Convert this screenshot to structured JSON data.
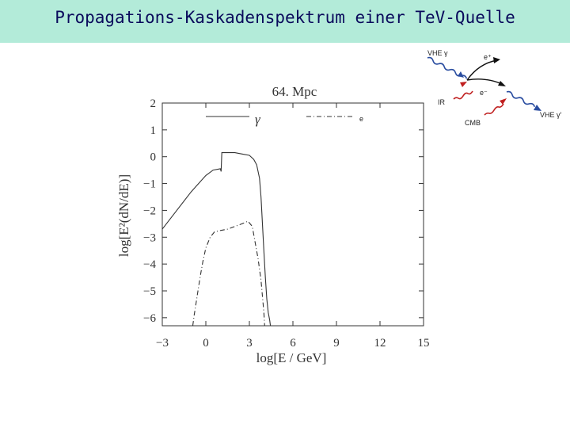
{
  "slide": {
    "title": "Propagations-Kaskadenspektrum einer TeV-Quelle",
    "title_color": "#0a0a5c",
    "title_bar_color": "#b3ebd9"
  },
  "chart_data": {
    "type": "line",
    "title": "64. Mpc",
    "xlabel": "log[E / GeV]",
    "ylabel": "log[E²(dN/dE)]",
    "xlim": [
      -3,
      15
    ],
    "ylim": [
      -6.3,
      2
    ],
    "xticks": [
      -3,
      0,
      3,
      6,
      9,
      12,
      15
    ],
    "yticks": [
      2,
      1,
      0,
      -1,
      -2,
      -3,
      -4,
      -5,
      -6
    ],
    "legend_position": "top",
    "series": [
      {
        "name": "γ",
        "style": "solid",
        "x": [
          -3,
          -2,
          -1,
          0,
          0.5,
          1.0,
          1.05,
          1.1,
          1.5,
          2.0,
          2.5,
          3.0,
          3.3,
          3.5,
          3.7,
          3.8,
          3.9,
          4.0,
          4.1,
          4.2,
          4.3,
          4.4,
          4.45
        ],
        "y": [
          -2.7,
          -2.0,
          -1.3,
          -0.7,
          -0.5,
          -0.45,
          -0.55,
          0.15,
          0.15,
          0.15,
          0.1,
          0.05,
          -0.1,
          -0.3,
          -0.8,
          -1.5,
          -2.5,
          -3.5,
          -4.5,
          -5.3,
          -5.8,
          -6.1,
          -6.3
        ]
      },
      {
        "name": "e",
        "style": "dashdot",
        "x": [
          -0.9,
          -0.8,
          -0.6,
          -0.4,
          -0.2,
          0.0,
          0.3,
          0.6,
          1.0,
          1.5,
          2.0,
          2.5,
          2.9,
          3.2,
          3.4,
          3.6,
          3.8,
          3.9,
          4.0,
          4.05
        ],
        "y": [
          -6.3,
          -5.9,
          -5.2,
          -4.5,
          -3.9,
          -3.4,
          -3.0,
          -2.8,
          -2.75,
          -2.7,
          -2.6,
          -2.5,
          -2.4,
          -2.6,
          -3.2,
          -3.8,
          -4.6,
          -5.2,
          -5.8,
          -6.3
        ]
      }
    ]
  },
  "diagram": {
    "labels": [
      "VHE γ",
      "e⁺",
      "e⁻",
      "IR",
      "CMB",
      "VHE γ'"
    ],
    "colors": {
      "photon": "#2a4da0",
      "ir": "#c02020",
      "cmb": "#c02020",
      "lepton": "#111111"
    }
  }
}
